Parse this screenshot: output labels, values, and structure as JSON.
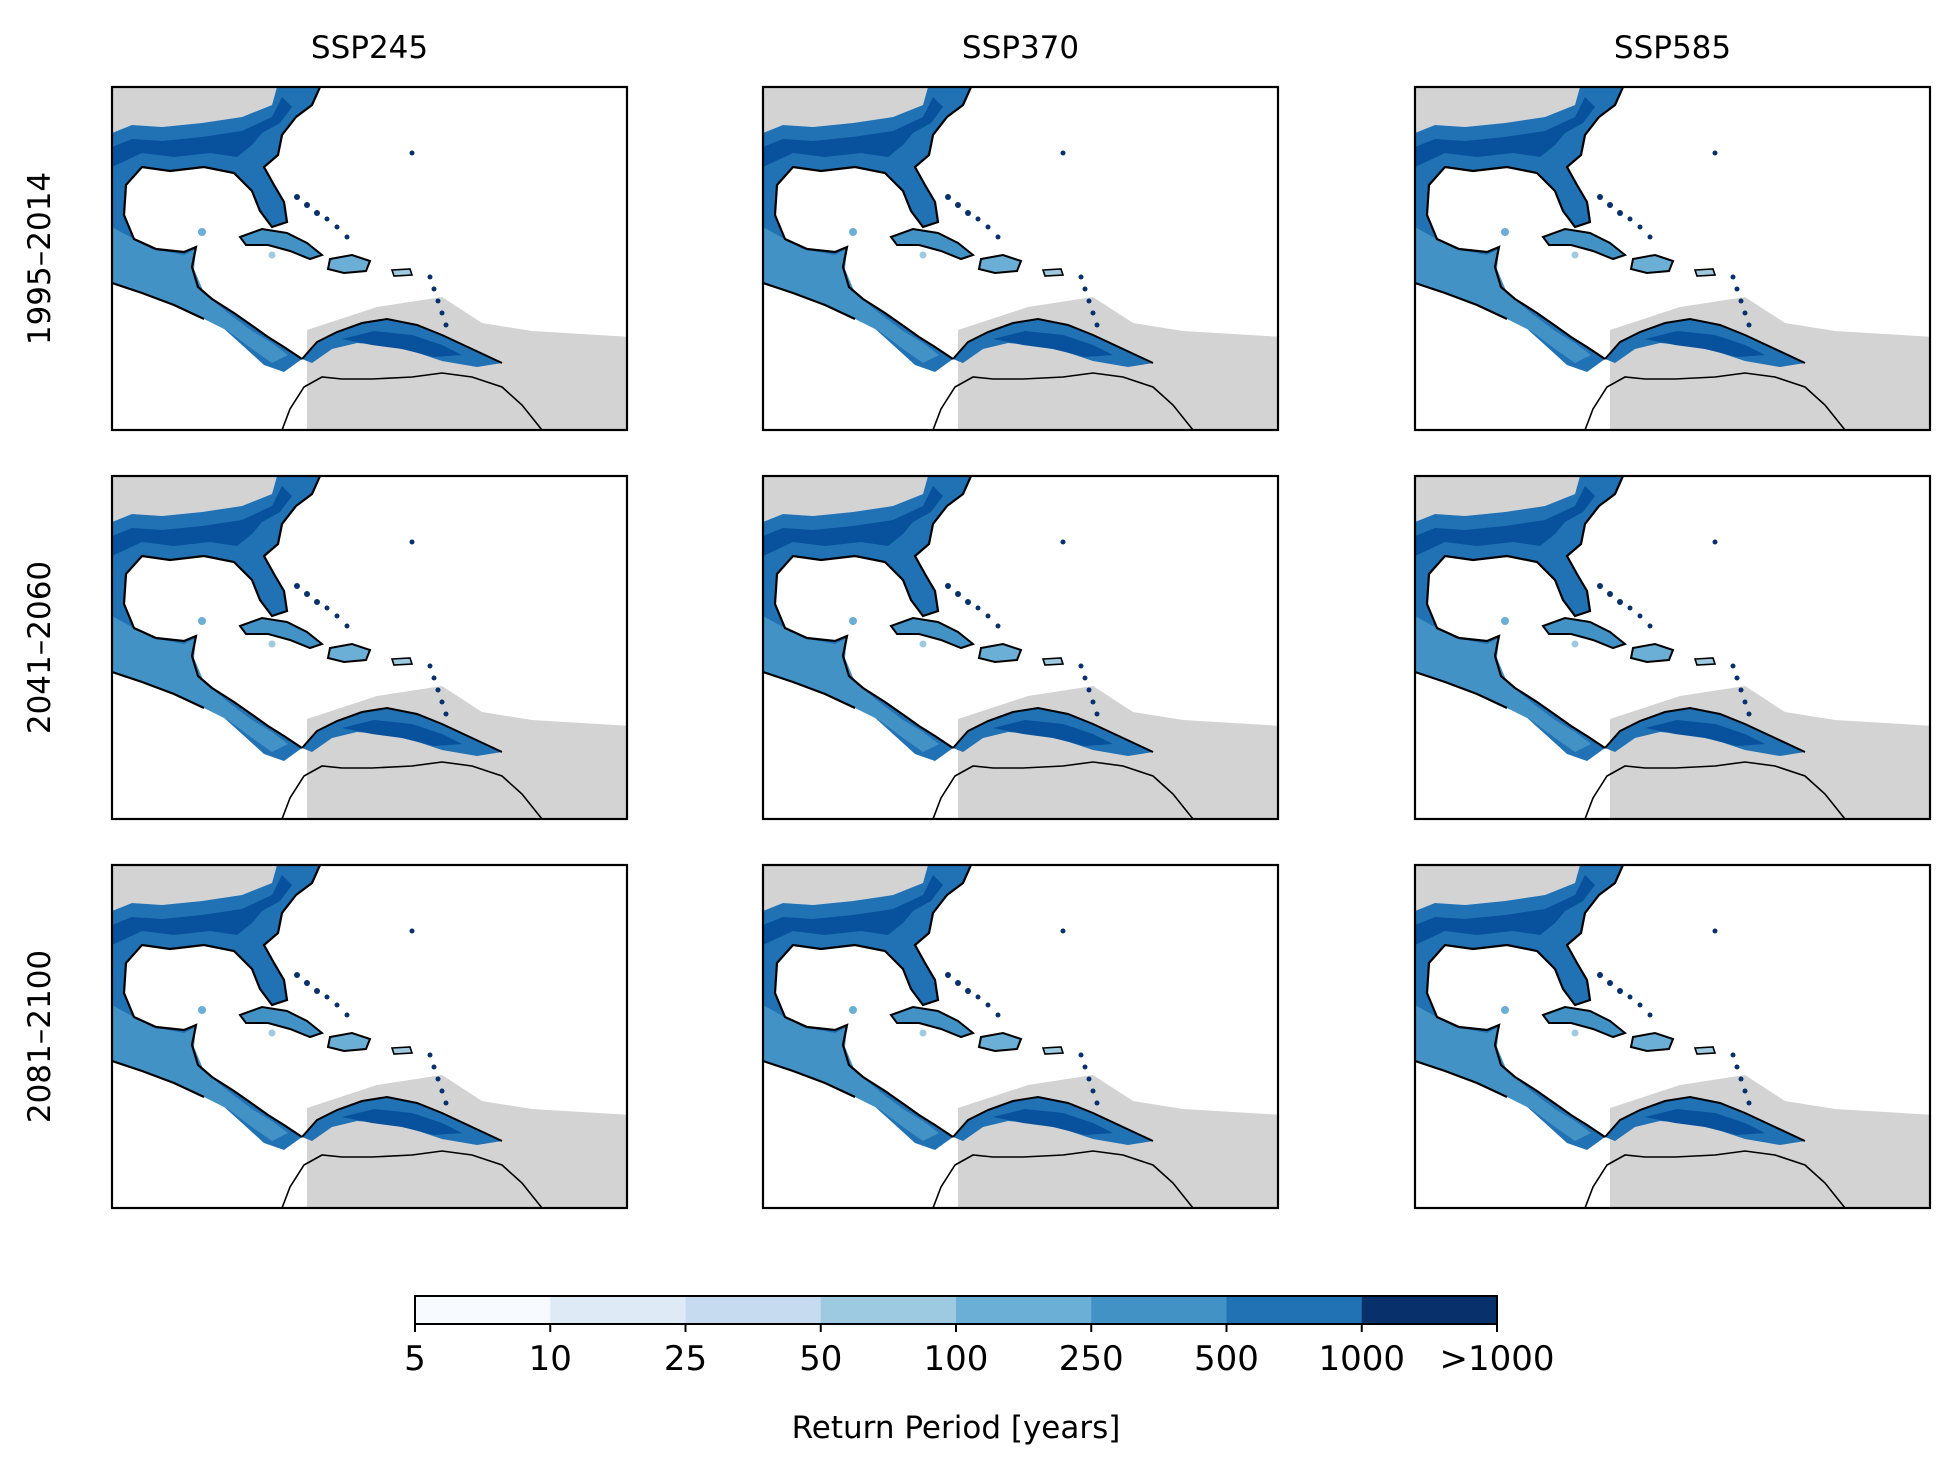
{
  "figure": {
    "columns": [
      "SSP245",
      "SSP370",
      "SSP585"
    ],
    "rows": [
      "1995–2014",
      "2041–2060",
      "2081–2100"
    ]
  },
  "colorbar": {
    "label": "Return Period [years]",
    "ticks": [
      "5",
      "10",
      "25",
      "50",
      "100",
      "250",
      "500",
      "1000",
      ">1000"
    ],
    "colors": [
      "#f7fbff",
      "#deebf7",
      "#c6dbef",
      "#9ecae1",
      "#6baed6",
      "#4292c6",
      "#2171b5",
      "#08519c",
      "#08306b"
    ],
    "land_color": "#d3d3d3"
  },
  "chart_data": {
    "type": "heatmap",
    "panels_grid": {
      "rows": [
        "1995–2014",
        "2041–2060",
        "2081–2100"
      ],
      "columns": [
        "SSP245",
        "SSP370",
        "SSP585"
      ]
    },
    "bins": [
      "5–10",
      "10–25",
      "25–50",
      "50–100",
      "100–250",
      "250–500",
      "500–1000",
      "1000–>1000"
    ],
    "colorbar_label": "Return Period [years]"
  }
}
